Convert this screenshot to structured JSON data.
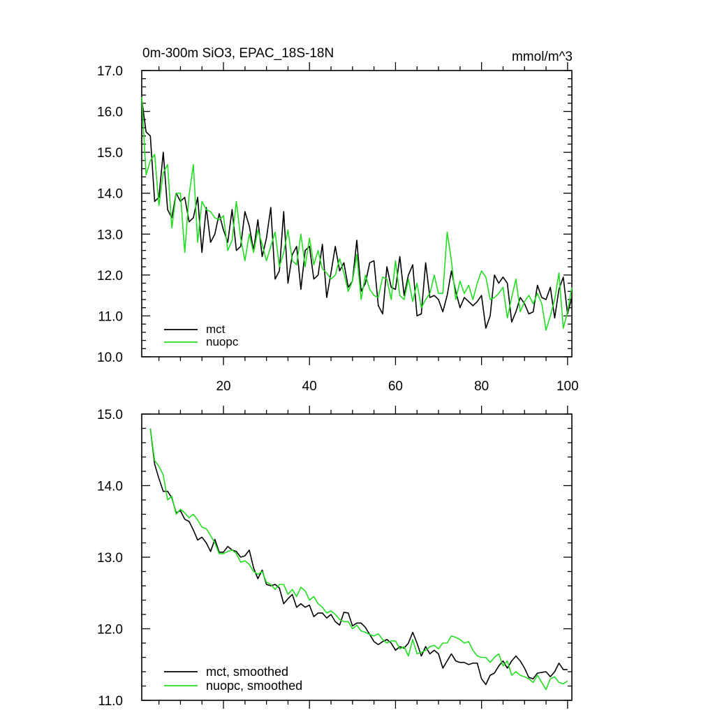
{
  "chart_data": [
    {
      "type": "line",
      "title": "0m-300m SiO3, EPAC_18S-18N",
      "units": "mmol/m^3",
      "xlim": [
        1,
        101
      ],
      "ylim": [
        10.0,
        17.0
      ],
      "x_ticks": [
        20,
        40,
        60,
        80,
        100
      ],
      "x_tick_labels": [
        "20",
        "40",
        "60",
        "80",
        "100"
      ],
      "y_ticks": [
        10,
        11,
        12,
        13,
        14,
        15,
        16,
        17
      ],
      "y_tick_labels": [
        "10.0",
        "11.0",
        "12.0",
        "13.0",
        "14.0",
        "15.0",
        "16.0",
        "17.0"
      ],
      "legend_position": "bottom-left",
      "x_start": 1,
      "series": [
        {
          "name": "mct",
          "color": "#000000",
          "values": [
            16.3,
            15.5,
            15.4,
            13.8,
            13.9,
            15.0,
            13.6,
            13.4,
            14.0,
            13.8,
            13.9,
            13.3,
            13.4,
            13.9,
            12.55,
            13.65,
            12.8,
            13.0,
            13.5,
            13.1,
            12.8,
            13.6,
            12.6,
            12.7,
            13.55,
            13.2,
            12.6,
            13.35,
            12.45,
            12.9,
            13.65,
            11.9,
            12.1,
            13.55,
            11.8,
            12.5,
            12.7,
            11.65,
            12.6,
            12.7,
            11.9,
            12.0,
            12.75,
            11.45,
            12.05,
            12.7,
            12.1,
            12.3,
            11.7,
            11.85,
            12.85,
            11.6,
            11.8,
            12.3,
            12.35,
            11.25,
            11.05,
            12.2,
            11.7,
            11.65,
            12.45,
            11.5,
            12.0,
            12.25,
            11.0,
            11.05,
            12.3,
            11.45,
            11.5,
            11.4,
            11.1,
            11.5,
            12.1,
            11.6,
            11.2,
            11.45,
            11.35,
            11.25,
            11.35,
            11.5,
            10.7,
            11.0,
            12.0,
            11.8,
            11.95,
            11.8,
            10.85,
            11.1,
            11.45,
            11.3,
            11.05,
            11.1,
            11.75,
            11.45,
            11.4,
            11.7,
            10.95,
            11.65,
            11.95,
            11.05,
            11.45
          ]
        },
        {
          "name": "nuopc",
          "color": "#22dd22",
          "values": [
            16.35,
            14.45,
            14.8,
            14.95,
            13.7,
            14.5,
            14.7,
            13.15,
            14.0,
            14.0,
            12.55,
            13.95,
            14.7,
            12.8,
            13.8,
            13.6,
            13.55,
            13.4,
            13.35,
            13.45,
            12.6,
            12.85,
            13.8,
            12.9,
            12.35,
            13.0,
            12.55,
            13.1,
            12.75,
            12.35,
            12.7,
            13.05,
            12.2,
            12.55,
            13.1,
            12.35,
            12.25,
            13.0,
            12.2,
            12.9,
            12.25,
            12.6,
            12.15,
            12.05,
            11.9,
            12.0,
            12.4,
            12.05,
            11.6,
            11.85,
            12.5,
            11.4,
            12.0,
            11.65,
            11.5,
            11.45,
            11.95,
            11.9,
            11.4,
            12.35,
            11.5,
            11.4,
            11.9,
            11.35,
            11.8,
            11.2,
            11.4,
            11.55,
            12.0,
            11.55,
            11.55,
            13.05,
            12.35,
            11.4,
            11.85,
            11.55,
            11.75,
            11.4,
            11.8,
            12.1,
            11.95,
            11.4,
            11.45,
            11.55,
            11.7,
            10.95,
            11.45,
            11.9,
            11.1,
            11.35,
            11.5,
            11.3,
            11.55,
            11.3,
            10.65,
            11.0,
            11.4,
            12.05,
            10.7,
            11.1,
            11.7
          ]
        }
      ]
    },
    {
      "type": "line",
      "xlim": [
        1,
        101
      ],
      "ylim": [
        11.0,
        15.0
      ],
      "x_ticks": [
        20,
        40,
        60,
        80,
        100
      ],
      "y_ticks": [
        11,
        12,
        13,
        14,
        15
      ],
      "y_tick_labels": [
        "11.0",
        "12.0",
        "13.0",
        "14.0",
        "15.0"
      ],
      "legend_position": "bottom-left",
      "x_start": 3,
      "series": [
        {
          "name": "mct, smoothed",
          "color": "#000000",
          "values": [
            14.8,
            14.3,
            14.1,
            13.92,
            13.92,
            13.83,
            13.62,
            13.65,
            13.53,
            13.5,
            13.38,
            13.24,
            13.28,
            13.2,
            13.08,
            13.25,
            13.07,
            13.07,
            13.15,
            13.1,
            13.08,
            13.0,
            13.02,
            13.1,
            12.85,
            12.7,
            12.82,
            12.62,
            12.6,
            12.62,
            12.57,
            12.35,
            12.42,
            12.48,
            12.3,
            12.35,
            12.3,
            12.33,
            12.17,
            12.22,
            12.22,
            12.15,
            12.2,
            12.1,
            12.05,
            12.23,
            12.22,
            12.04,
            12.08,
            12.08,
            12.02,
            11.92,
            11.82,
            11.78,
            11.82,
            11.85,
            11.8,
            11.7,
            11.75,
            11.73,
            11.8,
            11.95,
            11.8,
            11.62,
            11.75,
            11.65,
            11.7,
            11.65,
            11.45,
            11.55,
            11.65,
            11.55,
            11.53,
            11.53,
            11.5,
            11.52,
            11.52,
            11.3,
            11.22,
            11.35,
            11.38,
            11.48,
            11.55,
            11.45,
            11.55,
            11.62,
            11.55,
            11.45,
            11.32,
            11.3,
            11.38,
            11.39,
            11.4,
            11.33,
            11.4,
            11.52,
            11.43,
            11.43
          ]
        },
        {
          "name": "nuopc, smoothed",
          "color": "#22dd22",
          "values": [
            14.8,
            14.35,
            14.27,
            14.15,
            13.8,
            13.85,
            13.6,
            13.67,
            13.62,
            13.55,
            13.6,
            13.52,
            13.42,
            13.4,
            13.3,
            13.2,
            13.05,
            13.05,
            13.08,
            13.1,
            13.05,
            12.93,
            12.95,
            12.9,
            12.8,
            12.76,
            12.8,
            12.65,
            12.62,
            12.55,
            12.62,
            12.62,
            12.48,
            12.55,
            12.45,
            12.58,
            12.53,
            12.4,
            12.45,
            12.35,
            12.3,
            12.22,
            12.25,
            12.2,
            12.13,
            12.1,
            12.1,
            12.0,
            12.05,
            11.97,
            11.95,
            11.92,
            11.9,
            11.93,
            11.85,
            11.8,
            11.83,
            11.83,
            11.72,
            11.75,
            11.62,
            11.85,
            11.65,
            11.67,
            11.7,
            11.75,
            11.77,
            11.72,
            11.8,
            11.8,
            11.9,
            11.88,
            11.85,
            11.8,
            11.82,
            11.7,
            11.62,
            11.6,
            11.6,
            11.53,
            11.6,
            11.65,
            11.48,
            11.55,
            11.35,
            11.4,
            11.35,
            11.33,
            11.3,
            11.25,
            11.35,
            11.25,
            11.15,
            11.3,
            11.33,
            11.25,
            11.23,
            11.27
          ]
        }
      ]
    }
  ]
}
